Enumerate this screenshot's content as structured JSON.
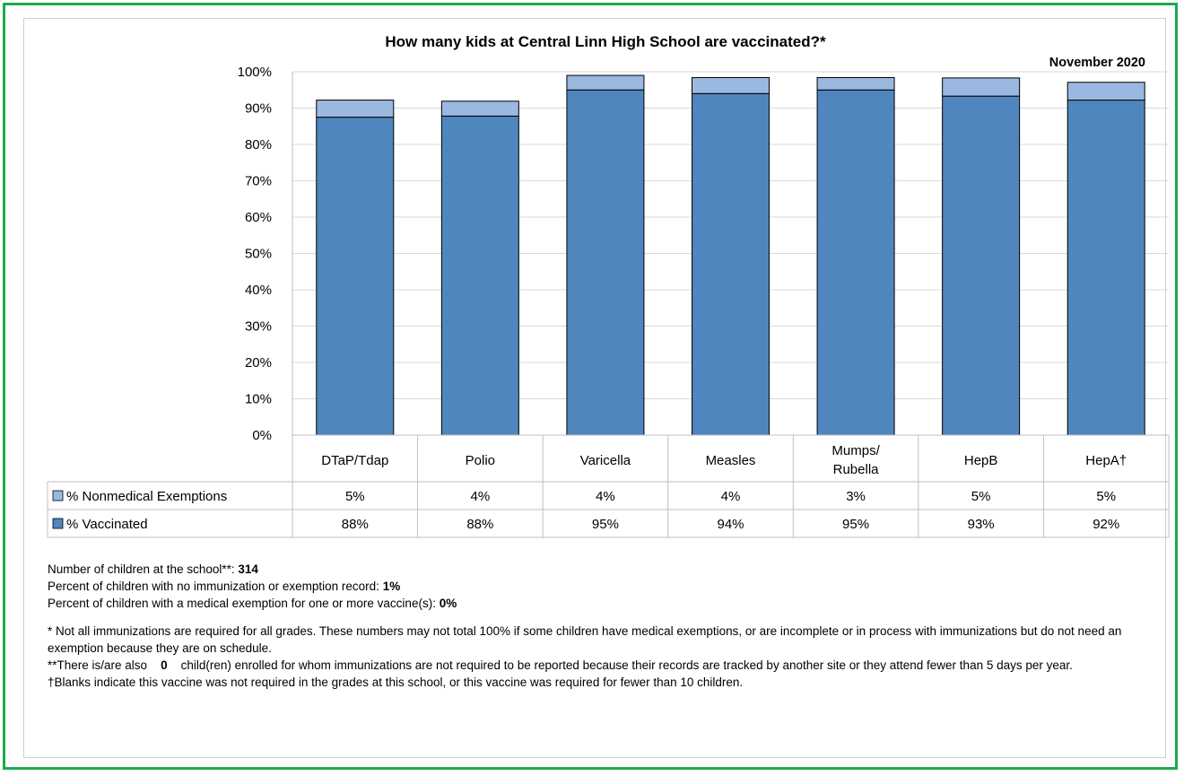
{
  "chart_data": {
    "type": "bar",
    "stacked": true,
    "title": "How many kids at Central Linn High School are vaccinated?*",
    "date_label": "November 2020",
    "categories": [
      "DTaP/Tdap",
      "Polio",
      "Varicella",
      "Measles",
      "Mumps/\nRubella",
      "HepB",
      "HepA†"
    ],
    "series": [
      {
        "name": "% Vaccinated",
        "color": "#4f86bd",
        "values": [
          87.5,
          87.8,
          95.0,
          94.0,
          95.0,
          93.3,
          92.2
        ],
        "labels": [
          "88%",
          "88%",
          "95%",
          "94%",
          "95%",
          "93%",
          "92%"
        ]
      },
      {
        "name": "% Nonmedical Exemptions",
        "color": "#9ab8e0",
        "values": [
          4.7,
          4.1,
          4.0,
          4.4,
          3.4,
          5.0,
          4.9
        ],
        "labels": [
          "5%",
          "4%",
          "4%",
          "4%",
          "3%",
          "5%",
          "5%"
        ]
      }
    ],
    "ylim": [
      0,
      100
    ],
    "yticks": [
      "0%",
      "10%",
      "20%",
      "30%",
      "40%",
      "50%",
      "60%",
      "70%",
      "80%",
      "90%",
      "100%"
    ],
    "grid": true,
    "data_table": true
  },
  "notes": {
    "children_label": "Number of children at the school**: ",
    "children_value": "314",
    "no_record_label": "Percent of children with no immunization or exemption record: ",
    "no_record_value": "1%",
    "medical_label": "Percent of children with a medical exemption for one or more vaccine(s): ",
    "medical_value": "0%",
    "footnote1": "* Not all immunizations are required for all grades. These numbers may not total 100% if some children have medical exemptions, or are incomplete or in process with immunizations but do not need an exemption because they are on schedule.",
    "footnote2_a": "**There is/are also",
    "footnote2_count": "0",
    "footnote2_b": "child(ren) enrolled for whom immunizations are not required to be reported because their records are tracked by another site or they attend fewer than 5 days per year.",
    "footnote3": "†Blanks indicate this vaccine was not required in the grades at this school, or this vaccine was required for fewer than 10 children."
  }
}
